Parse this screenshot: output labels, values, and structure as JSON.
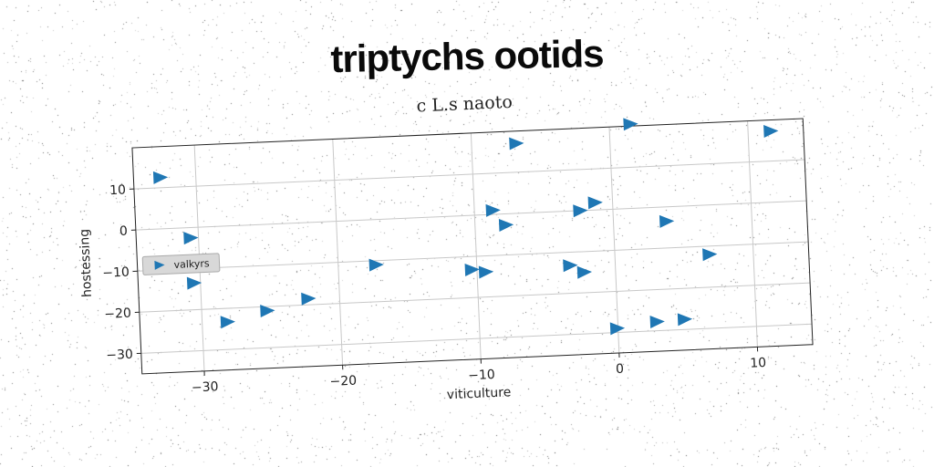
{
  "main_title": "triptychs ootids",
  "chart_data": {
    "type": "scatter",
    "title": "c L.s naoto",
    "xlabel": "viticulture",
    "ylabel": "hostessing",
    "xlim": [
      -34.5,
      14
    ],
    "ylim": [
      -35,
      20
    ],
    "xticks": [
      -30,
      -20,
      -10,
      0,
      10
    ],
    "yticks": [
      -30,
      -20,
      -10,
      0,
      10
    ],
    "xtick_labels": [
      "−30",
      "−20",
      "−10",
      "0",
      "10"
    ],
    "ytick_labels": [
      "−30",
      "−20",
      "−10",
      "0",
      "10"
    ],
    "grid": true,
    "legend_position": "center-left",
    "marker": "triangle-right",
    "series": [
      {
        "name": "valkyrs",
        "color": "#1f77b4",
        "points": [
          [
            -32.6,
            12.5
          ],
          [
            -30.6,
            -2.5
          ],
          [
            -30.5,
            -13.5
          ],
          [
            -28.2,
            -23.3
          ],
          [
            -25.3,
            -21
          ],
          [
            -22.3,
            -18.5
          ],
          [
            -17.3,
            -11
          ],
          [
            -10.4,
            -13.2
          ],
          [
            -9.4,
            -13.9
          ],
          [
            -8.7,
            1
          ],
          [
            -7.8,
            -2.7
          ],
          [
            -6.8,
            17
          ],
          [
            -3.3,
            -13.2
          ],
          [
            -2.4,
            0
          ],
          [
            -2.3,
            -15
          ],
          [
            -1.3,
            1.8
          ],
          [
            -0.1,
            -29
          ],
          [
            1.5,
            20.5
          ],
          [
            2.8,
            -27.8
          ],
          [
            3.8,
            -3.5
          ],
          [
            4.8,
            -27.5
          ],
          [
            6.8,
            -12
          ],
          [
            11.6,
            17.3
          ]
        ]
      }
    ]
  }
}
